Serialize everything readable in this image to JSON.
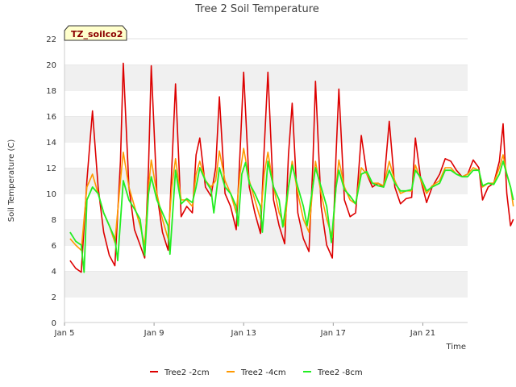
{
  "chart_data": {
    "type": "line",
    "title": "Tree 2 Soil Temperature",
    "xlabel": "Time",
    "ylabel": "Soil Temperature (C)",
    "ylim": [
      0,
      22
    ],
    "yticks": [
      0,
      2,
      4,
      6,
      8,
      10,
      12,
      14,
      16,
      18,
      20,
      22
    ],
    "xlim": [
      "Jan 5",
      "Jan 23"
    ],
    "xticks": [
      "Jan 5",
      "Jan 9",
      "Jan 13",
      "Jan 17",
      "Jan 21"
    ],
    "grid": "horizontal bands",
    "legend_position": "bottom-center",
    "annotation": "TZ_soilco2",
    "series": [
      {
        "name": "Tree2 -2cm",
        "color": "#dd0000",
        "points": [
          [
            "Jan 5 06:00",
            4.8
          ],
          [
            "Jan 5 12:00",
            4.2
          ],
          [
            "Jan 5 18:00",
            3.9
          ],
          [
            "Jan 6 00:00",
            11.0
          ],
          [
            "Jan 6 06:00",
            16.4
          ],
          [
            "Jan 6 12:00",
            10.5
          ],
          [
            "Jan 6 18:00",
            7.0
          ],
          [
            "Jan 7 00:00",
            5.2
          ],
          [
            "Jan 7 06:00",
            4.4
          ],
          [
            "Jan 7 12:00",
            12.5
          ],
          [
            "Jan 7 15:00",
            20.1
          ],
          [
            "Jan 7 21:00",
            10.5
          ],
          [
            "Jan 8 03:00",
            7.2
          ],
          [
            "Jan 8 09:00",
            6.0
          ],
          [
            "Jan 8 14:00",
            5.0
          ],
          [
            "Jan 8 18:00",
            12.0
          ],
          [
            "Jan 8 21:00",
            19.9
          ],
          [
            "Jan 9 03:00",
            10.0
          ],
          [
            "Jan 9 09:00",
            7.0
          ],
          [
            "Jan 9 15:00",
            5.6
          ],
          [
            "Jan 9 19:00",
            12.0
          ],
          [
            "Jan 9 23:00",
            18.5
          ],
          [
            "Jan 10 05:00",
            8.2
          ],
          [
            "Jan 10 11:00",
            9.0
          ],
          [
            "Jan 10 17:00",
            8.5
          ],
          [
            "Jan 10 21:00",
            13.0
          ],
          [
            "Jan 11 01:00",
            14.3
          ],
          [
            "Jan 11 07:00",
            10.5
          ],
          [
            "Jan 11 13:00",
            9.8
          ],
          [
            "Jan 11 18:00",
            12.0
          ],
          [
            "Jan 11 22:00",
            17.5
          ],
          [
            "Jan 12 04:00",
            10.0
          ],
          [
            "Jan 12 10:00",
            9.0
          ],
          [
            "Jan 12 16:00",
            7.2
          ],
          [
            "Jan 12 20:00",
            13.0
          ],
          [
            "Jan 13 00:00",
            19.4
          ],
          [
            "Jan 13 06:00",
            10.5
          ],
          [
            "Jan 13 12:00",
            8.5
          ],
          [
            "Jan 13 18:00",
            6.9
          ],
          [
            "Jan 13 22:00",
            13.5
          ],
          [
            "Jan 14 02:00",
            19.4
          ],
          [
            "Jan 14 08:00",
            9.5
          ],
          [
            "Jan 14 14:00",
            7.5
          ],
          [
            "Jan 14 20:00",
            6.1
          ],
          [
            "Jan 15 00:00",
            13.0
          ],
          [
            "Jan 15 04:00",
            17.0
          ],
          [
            "Jan 15 10:00",
            8.5
          ],
          [
            "Jan 15 16:00",
            6.5
          ],
          [
            "Jan 15 22:00",
            5.5
          ],
          [
            "Jan 16 02:00",
            12.0
          ],
          [
            "Jan 16 05:00",
            18.7
          ],
          [
            "Jan 16 11:00",
            9.0
          ],
          [
            "Jan 16 17:00",
            6.0
          ],
          [
            "Jan 16 23:00",
            5.0
          ],
          [
            "Jan 17 03:00",
            13.0
          ],
          [
            "Jan 17 06:00",
            18.1
          ],
          [
            "Jan 17 12:00",
            9.5
          ],
          [
            "Jan 17 18:00",
            8.2
          ],
          [
            "Jan 18 00:00",
            8.5
          ],
          [
            "Jan 18 06:00",
            14.5
          ],
          [
            "Jan 18 12:00",
            11.5
          ],
          [
            "Jan 18 18:00",
            10.5
          ],
          [
            "Jan 19 00:00",
            10.8
          ],
          [
            "Jan 19 06:00",
            10.5
          ],
          [
            "Jan 19 12:00",
            15.6
          ],
          [
            "Jan 19 18:00",
            10.5
          ],
          [
            "Jan 20 00:00",
            9.2
          ],
          [
            "Jan 20 06:00",
            9.6
          ],
          [
            "Jan 20 12:00",
            9.7
          ],
          [
            "Jan 20 16:00",
            14.3
          ],
          [
            "Jan 20 22:00",
            11.0
          ],
          [
            "Jan 21 04:00",
            9.3
          ],
          [
            "Jan 21 10:00",
            10.5
          ],
          [
            "Jan 21 18:00",
            11.5
          ],
          [
            "Jan 22 00:00",
            12.7
          ],
          [
            "Jan 22 06:00",
            12.5
          ],
          [
            "Jan 22 12:00",
            11.8
          ],
          [
            "Jan 22 18:00",
            11.3
          ],
          [
            "Jan 23 00:00",
            11.5
          ],
          [
            "Jan 23 06:00",
            12.6
          ],
          [
            "Jan 23 12:00",
            12.0
          ],
          [
            "Jan 23 16:00",
            9.5
          ],
          [
            "Jan 23 22:00",
            10.5
          ],
          [
            "Jan 24 04:00",
            10.8
          ],
          [
            "Jan 24 10:00",
            12.5
          ],
          [
            "Jan 24 14:00",
            15.4
          ],
          [
            "Jan 24 18:00",
            10.0
          ],
          [
            "Jan 24 22:00",
            7.5
          ],
          [
            "Jan 25 01:00",
            8.0
          ]
        ]
      },
      {
        "name": "Tree2 -4cm",
        "color": "#ff9900",
        "points": [
          [
            "Jan 5 06:00",
            6.5
          ],
          [
            "Jan 5 12:00",
            6.0
          ],
          [
            "Jan 5 18:00",
            5.6
          ],
          [
            "Jan 6 00:00",
            10.5
          ],
          [
            "Jan 6 06:00",
            11.5
          ],
          [
            "Jan 6 12:00",
            10.0
          ],
          [
            "Jan 6 18:00",
            8.5
          ],
          [
            "Jan 7 00:00",
            7.5
          ],
          [
            "Jan 7 06:00",
            6.2
          ],
          [
            "Jan 7 12:00",
            11.0
          ],
          [
            "Jan 7 15:00",
            13.2
          ],
          [
            "Jan 7 21:00",
            10.5
          ],
          [
            "Jan 8 03:00",
            9.0
          ],
          [
            "Jan 8 09:00",
            7.5
          ],
          [
            "Jan 8 14:00",
            6.0
          ],
          [
            "Jan 8 18:00",
            10.5
          ],
          [
            "Jan 8 21:00",
            12.6
          ],
          [
            "Jan 9 03:00",
            10.0
          ],
          [
            "Jan 9 09:00",
            8.0
          ],
          [
            "Jan 9 15:00",
            6.5
          ],
          [
            "Jan 9 19:00",
            10.5
          ],
          [
            "Jan 9 23:00",
            12.7
          ],
          [
            "Jan 10 05:00",
            9.5
          ],
          [
            "Jan 10 11:00",
            9.5
          ],
          [
            "Jan 10 17:00",
            9.0
          ],
          [
            "Jan 10 21:00",
            11.5
          ],
          [
            "Jan 11 01:00",
            12.5
          ],
          [
            "Jan 11 07:00",
            11.0
          ],
          [
            "Jan 11 13:00",
            10.5
          ],
          [
            "Jan 11 18:00",
            11.0
          ],
          [
            "Jan 11 22:00",
            13.3
          ],
          [
            "Jan 12 04:00",
            11.0
          ],
          [
            "Jan 12 10:00",
            10.0
          ],
          [
            "Jan 12 16:00",
            8.5
          ],
          [
            "Jan 12 20:00",
            11.5
          ],
          [
            "Jan 13 00:00",
            13.5
          ],
          [
            "Jan 13 06:00",
            11.0
          ],
          [
            "Jan 13 12:00",
            9.5
          ],
          [
            "Jan 13 18:00",
            8.0
          ],
          [
            "Jan 13 22:00",
            11.5
          ],
          [
            "Jan 14 02:00",
            13.2
          ],
          [
            "Jan 14 08:00",
            10.5
          ],
          [
            "Jan 14 14:00",
            8.5
          ],
          [
            "Jan 14 20:00",
            7.5
          ],
          [
            "Jan 15 00:00",
            10.5
          ],
          [
            "Jan 15 04:00",
            12.5
          ],
          [
            "Jan 15 10:00",
            10.0
          ],
          [
            "Jan 15 16:00",
            8.0
          ],
          [
            "Jan 15 22:00",
            7.0
          ],
          [
            "Jan 16 02:00",
            10.5
          ],
          [
            "Jan 16 05:00",
            12.5
          ],
          [
            "Jan 16 11:00",
            10.0
          ],
          [
            "Jan 16 17:00",
            8.0
          ],
          [
            "Jan 16 23:00",
            6.6
          ],
          [
            "Jan 17 03:00",
            10.5
          ],
          [
            "Jan 17 06:00",
            12.6
          ],
          [
            "Jan 17 12:00",
            10.5
          ],
          [
            "Jan 17 18:00",
            9.5
          ],
          [
            "Jan 18 00:00",
            9.2
          ],
          [
            "Jan 18 06:00",
            12.0
          ],
          [
            "Jan 18 12:00",
            11.5
          ],
          [
            "Jan 18 18:00",
            10.8
          ],
          [
            "Jan 19 00:00",
            10.8
          ],
          [
            "Jan 19 06:00",
            10.6
          ],
          [
            "Jan 19 12:00",
            12.5
          ],
          [
            "Jan 19 18:00",
            11.0
          ],
          [
            "Jan 20 00:00",
            10.0
          ],
          [
            "Jan 20 06:00",
            10.2
          ],
          [
            "Jan 20 12:00",
            10.2
          ],
          [
            "Jan 20 16:00",
            12.2
          ],
          [
            "Jan 20 22:00",
            11.0
          ],
          [
            "Jan 21 04:00",
            10.0
          ],
          [
            "Jan 21 10:00",
            10.6
          ],
          [
            "Jan 21 18:00",
            11.0
          ],
          [
            "Jan 22 00:00",
            12.0
          ],
          [
            "Jan 22 06:00",
            12.0
          ],
          [
            "Jan 22 12:00",
            11.5
          ],
          [
            "Jan 22 18:00",
            11.3
          ],
          [
            "Jan 23 00:00",
            11.5
          ],
          [
            "Jan 23 06:00",
            12.0
          ],
          [
            "Jan 23 12:00",
            11.8
          ],
          [
            "Jan 23 16:00",
            10.5
          ],
          [
            "Jan 23 22:00",
            10.8
          ],
          [
            "Jan 24 04:00",
            10.8
          ],
          [
            "Jan 24 10:00",
            12.0
          ],
          [
            "Jan 24 14:00",
            13.0
          ],
          [
            "Jan 24 18:00",
            11.5
          ],
          [
            "Jan 24 22:00",
            10.5
          ],
          [
            "Jan 25 01:00",
            9.0
          ]
        ]
      },
      {
        "name": "Tree2 -8cm",
        "color": "#22ee22",
        "points": [
          [
            "Jan 5 06:00",
            7.0
          ],
          [
            "Jan 5 12:00",
            6.3
          ],
          [
            "Jan 5 18:00",
            6.0
          ],
          [
            "Jan 5 21:00",
            3.9
          ],
          [
            "Jan 6 00:00",
            9.5
          ],
          [
            "Jan 6 06:00",
            10.5
          ],
          [
            "Jan 6 12:00",
            10.0
          ],
          [
            "Jan 6 18:00",
            8.5
          ],
          [
            "Jan 7 00:00",
            7.5
          ],
          [
            "Jan 7 06:00",
            6.5
          ],
          [
            "Jan 7 09:00",
            4.8
          ],
          [
            "Jan 7 15:00",
            11.0
          ],
          [
            "Jan 7 21:00",
            9.5
          ],
          [
            "Jan 8 03:00",
            8.8
          ],
          [
            "Jan 8 09:00",
            8.0
          ],
          [
            "Jan 8 14:00",
            5.2
          ],
          [
            "Jan 8 18:00",
            10.0
          ],
          [
            "Jan 8 21:00",
            11.3
          ],
          [
            "Jan 9 03:00",
            9.5
          ],
          [
            "Jan 9 09:00",
            8.5
          ],
          [
            "Jan 9 15:00",
            7.5
          ],
          [
            "Jan 9 17:00",
            5.3
          ],
          [
            "Jan 9 23:00",
            11.8
          ],
          [
            "Jan 10 05:00",
            9.2
          ],
          [
            "Jan 10 11:00",
            9.6
          ],
          [
            "Jan 10 17:00",
            9.3
          ],
          [
            "Jan 10 21:00",
            10.5
          ],
          [
            "Jan 11 01:00",
            12.0
          ],
          [
            "Jan 11 07:00",
            11.0
          ],
          [
            "Jan 11 13:00",
            10.3
          ],
          [
            "Jan 11 16:00",
            8.5
          ],
          [
            "Jan 11 22:00",
            12.0
          ],
          [
            "Jan 12 04:00",
            10.5
          ],
          [
            "Jan 12 10:00",
            10.0
          ],
          [
            "Jan 12 16:00",
            9.0
          ],
          [
            "Jan 12 18:00",
            7.5
          ],
          [
            "Jan 12 22:00",
            11.5
          ],
          [
            "Jan 13 02:00",
            12.4
          ],
          [
            "Jan 13 06:00",
            10.8
          ],
          [
            "Jan 13 12:00",
            10.0
          ],
          [
            "Jan 13 18:00",
            9.0
          ],
          [
            "Jan 13 20:00",
            7.0
          ],
          [
            "Jan 14 02:00",
            12.5
          ],
          [
            "Jan 14 08:00",
            10.5
          ],
          [
            "Jan 14 14:00",
            9.5
          ],
          [
            "Jan 14 18:00",
            7.4
          ],
          [
            "Jan 15 00:00",
            10.5
          ],
          [
            "Jan 15 04:00",
            12.2
          ],
          [
            "Jan 15 10:00",
            10.5
          ],
          [
            "Jan 15 16:00",
            9.0
          ],
          [
            "Jan 15 20:00",
            7.5
          ],
          [
            "Jan 16 02:00",
            10.5
          ],
          [
            "Jan 16 05:00",
            12.0
          ],
          [
            "Jan 16 11:00",
            10.5
          ],
          [
            "Jan 16 17:00",
            9.0
          ],
          [
            "Jan 16 22:00",
            6.2
          ],
          [
            "Jan 17 03:00",
            10.5
          ],
          [
            "Jan 17 06:00",
            11.8
          ],
          [
            "Jan 17 12:00",
            10.3
          ],
          [
            "Jan 17 18:00",
            9.8
          ],
          [
            "Jan 18 00:00",
            9.2
          ],
          [
            "Jan 18 06:00",
            11.5
          ],
          [
            "Jan 18 12:00",
            11.7
          ],
          [
            "Jan 18 18:00",
            10.8
          ],
          [
            "Jan 19 00:00",
            10.6
          ],
          [
            "Jan 19 06:00",
            10.5
          ],
          [
            "Jan 19 12:00",
            11.8
          ],
          [
            "Jan 19 18:00",
            10.8
          ],
          [
            "Jan 20 00:00",
            10.2
          ],
          [
            "Jan 20 06:00",
            10.2
          ],
          [
            "Jan 20 12:00",
            10.3
          ],
          [
            "Jan 20 16:00",
            11.8
          ],
          [
            "Jan 20 22:00",
            11.2
          ],
          [
            "Jan 21 04:00",
            10.2
          ],
          [
            "Jan 21 10:00",
            10.5
          ],
          [
            "Jan 21 18:00",
            10.8
          ],
          [
            "Jan 22 00:00",
            11.8
          ],
          [
            "Jan 22 06:00",
            11.8
          ],
          [
            "Jan 22 12:00",
            11.5
          ],
          [
            "Jan 22 18:00",
            11.3
          ],
          [
            "Jan 23 00:00",
            11.3
          ],
          [
            "Jan 23 06:00",
            11.8
          ],
          [
            "Jan 23 12:00",
            11.8
          ],
          [
            "Jan 23 16:00",
            10.6
          ],
          [
            "Jan 23 22:00",
            10.8
          ],
          [
            "Jan 24 04:00",
            10.7
          ],
          [
            "Jan 24 10:00",
            11.5
          ],
          [
            "Jan 24 14:00",
            12.5
          ],
          [
            "Jan 24 18:00",
            11.5
          ],
          [
            "Jan 24 22:00",
            10.5
          ],
          [
            "Jan 25 01:00",
            9.5
          ]
        ]
      }
    ]
  }
}
